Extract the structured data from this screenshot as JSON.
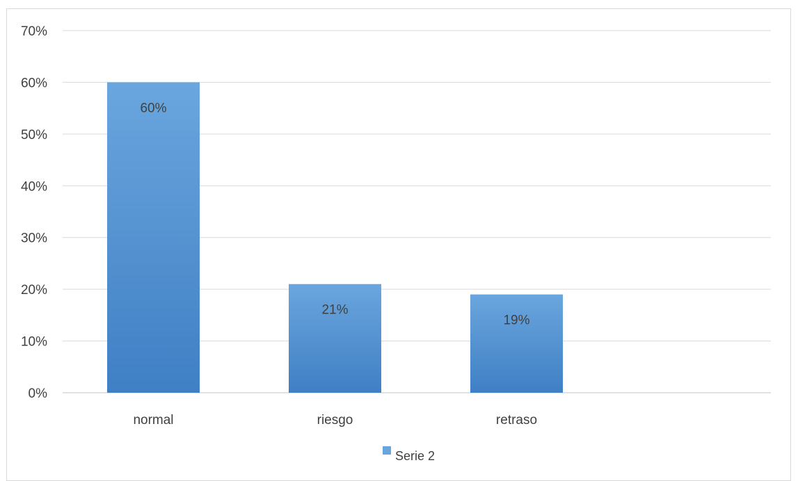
{
  "chart_data": {
    "type": "bar",
    "categories": [
      "normal",
      "riesgo",
      "retraso"
    ],
    "series": [
      {
        "name": "Serie 2",
        "values": [
          60,
          21,
          19
        ]
      }
    ],
    "data_labels": [
      "60%",
      "21%",
      "19%"
    ],
    "yticks": [
      "0%",
      "10%",
      "20%",
      "30%",
      "40%",
      "50%",
      "60%",
      "70%"
    ],
    "ylim": [
      0,
      70
    ],
    "grid": true,
    "legend": "bottom",
    "colors": {
      "bar_top": "#6aa6de",
      "bar_bottom": "#3f7fc4",
      "grid": "#d9d9d9",
      "text": "#404040"
    }
  }
}
